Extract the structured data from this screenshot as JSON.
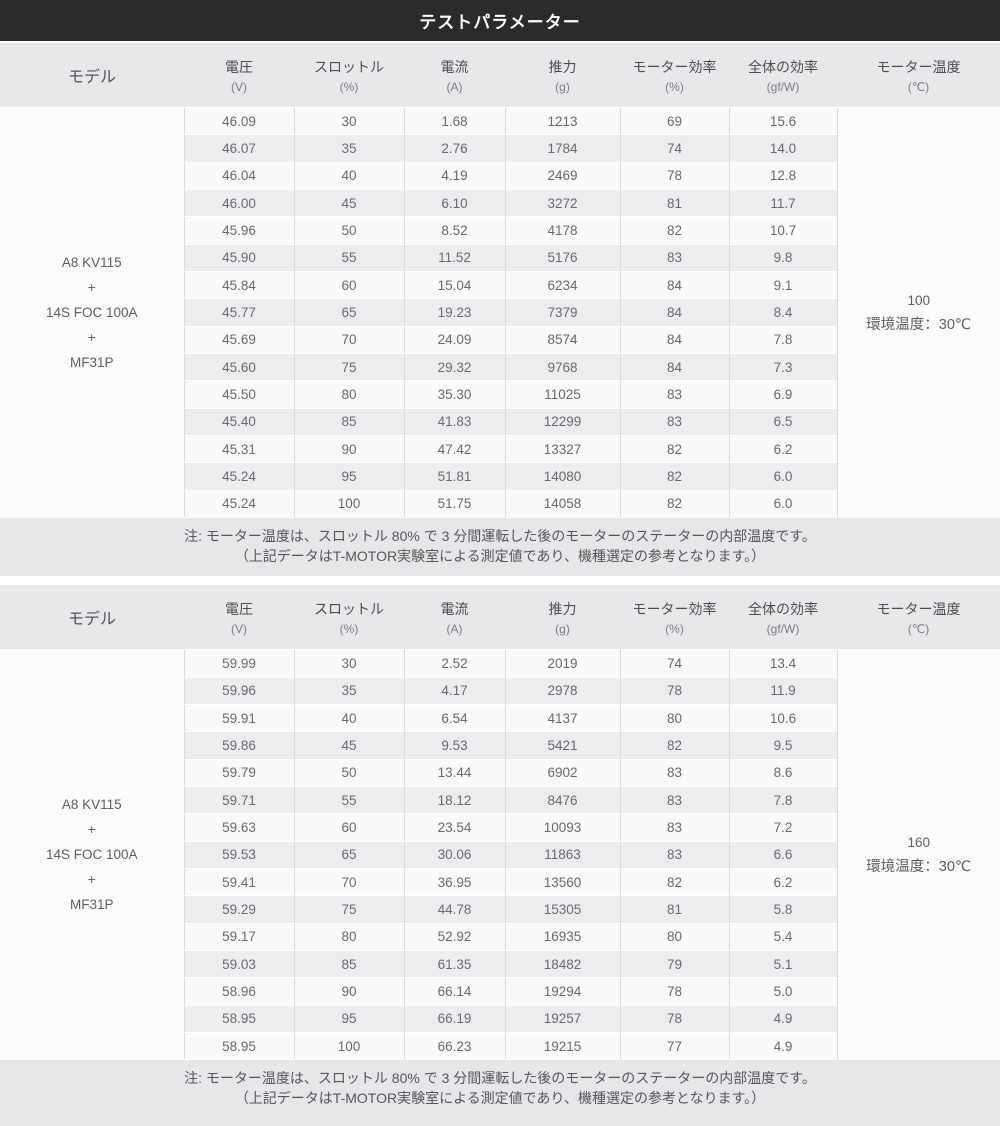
{
  "title": "テストパラメーター",
  "colors": {
    "banner_bg": "#2b2b2e",
    "header_bg": "#e8e8ea",
    "row_odd": "#fafafb",
    "row_even": "#ededef",
    "note_bg": "#e7e7e9",
    "grid_line": "#d9d9dc",
    "merged_cell_bg": "#fcfcfd"
  },
  "columns": [
    {
      "key": "model",
      "label": "モデル",
      "unit": ""
    },
    {
      "key": "voltage",
      "label": "電圧",
      "unit": "(V)"
    },
    {
      "key": "throttle",
      "label": "スロットル",
      "unit": "(%)"
    },
    {
      "key": "current",
      "label": "電流",
      "unit": "(A)"
    },
    {
      "key": "thrust",
      "label": "推力",
      "unit": "(g)"
    },
    {
      "key": "motor-efficiency",
      "label": "モーター効率",
      "unit": "(%)"
    },
    {
      "key": "overall-efficiency",
      "label": "全体の効率",
      "unit": "(gf/W)"
    },
    {
      "key": "motor-temp",
      "label": "モーター温度",
      "unit": "(℃)"
    }
  ],
  "tables": [
    {
      "model_lines": [
        "A8 KV115",
        "+",
        "14S FOC 100A",
        "+",
        "MF31P"
      ],
      "motor_temp": "100",
      "ambient_temp": "環境温度：30℃",
      "rows": [
        [
          "46.09",
          "30",
          "1.68",
          "1213",
          "69",
          "15.6"
        ],
        [
          "46.07",
          "35",
          "2.76",
          "1784",
          "74",
          "14.0"
        ],
        [
          "46.04",
          "40",
          "4.19",
          "2469",
          "78",
          "12.8"
        ],
        [
          "46.00",
          "45",
          "6.10",
          "3272",
          "81",
          "11.7"
        ],
        [
          "45.96",
          "50",
          "8.52",
          "4178",
          "82",
          "10.7"
        ],
        [
          "45.90",
          "55",
          "11.52",
          "5176",
          "83",
          "9.8"
        ],
        [
          "45.84",
          "60",
          "15.04",
          "6234",
          "84",
          "9.1"
        ],
        [
          "45.77",
          "65",
          "19.23",
          "7379",
          "84",
          "8.4"
        ],
        [
          "45.69",
          "70",
          "24.09",
          "8574",
          "84",
          "7.8"
        ],
        [
          "45.60",
          "75",
          "29.32",
          "9768",
          "84",
          "7.3"
        ],
        [
          "45.50",
          "80",
          "35.30",
          "11025",
          "83",
          "6.9"
        ],
        [
          "45.40",
          "85",
          "41.83",
          "12299",
          "83",
          "6.5"
        ],
        [
          "45.31",
          "90",
          "47.42",
          "13327",
          "82",
          "6.2"
        ],
        [
          "45.24",
          "95",
          "51.81",
          "14080",
          "82",
          "6.0"
        ],
        [
          "45.24",
          "100",
          "51.75",
          "14058",
          "82",
          "6.0"
        ]
      ],
      "note": {
        "line1": "注: モーター温度は、スロットル 80% で 3 分間運転した後のモーターのステーターの内部温度です。",
        "line2": "（上記データはT-MOTOR実験室による測定値であり、機種選定の参考となります。）"
      }
    },
    {
      "model_lines": [
        "A8 KV115",
        "+",
        "14S FOC 100A",
        "+",
        "MF31P"
      ],
      "motor_temp": "160",
      "ambient_temp": "環境温度：30℃",
      "rows": [
        [
          "59.99",
          "30",
          "2.52",
          "2019",
          "74",
          "13.4"
        ],
        [
          "59.96",
          "35",
          "4.17",
          "2978",
          "78",
          "11.9"
        ],
        [
          "59.91",
          "40",
          "6.54",
          "4137",
          "80",
          "10.6"
        ],
        [
          "59.86",
          "45",
          "9.53",
          "5421",
          "82",
          "9.5"
        ],
        [
          "59.79",
          "50",
          "13.44",
          "6902",
          "83",
          "8.6"
        ],
        [
          "59.71",
          "55",
          "18.12",
          "8476",
          "83",
          "7.8"
        ],
        [
          "59.63",
          "60",
          "23.54",
          "10093",
          "83",
          "7.2"
        ],
        [
          "59.53",
          "65",
          "30.06",
          "11863",
          "83",
          "6.6"
        ],
        [
          "59.41",
          "70",
          "36.95",
          "13560",
          "82",
          "6.2"
        ],
        [
          "59.29",
          "75",
          "44.78",
          "15305",
          "81",
          "5.8"
        ],
        [
          "59.17",
          "80",
          "52.92",
          "16935",
          "80",
          "5.4"
        ],
        [
          "59.03",
          "85",
          "61.35",
          "18482",
          "79",
          "5.1"
        ],
        [
          "58.96",
          "90",
          "66.14",
          "19294",
          "78",
          "5.0"
        ],
        [
          "58.95",
          "95",
          "66.19",
          "19257",
          "78",
          "4.9"
        ],
        [
          "58.95",
          "100",
          "66.23",
          "19215",
          "77",
          "4.9"
        ]
      ],
      "note": {
        "line1": "注: モーター温度は、スロットル 80% で 3 分間運転した後のモーターのステーターの内部温度です。",
        "line2": "（上記データはT-MOTOR実験室による測定値であり、機種選定の参考となります。）"
      }
    }
  ]
}
